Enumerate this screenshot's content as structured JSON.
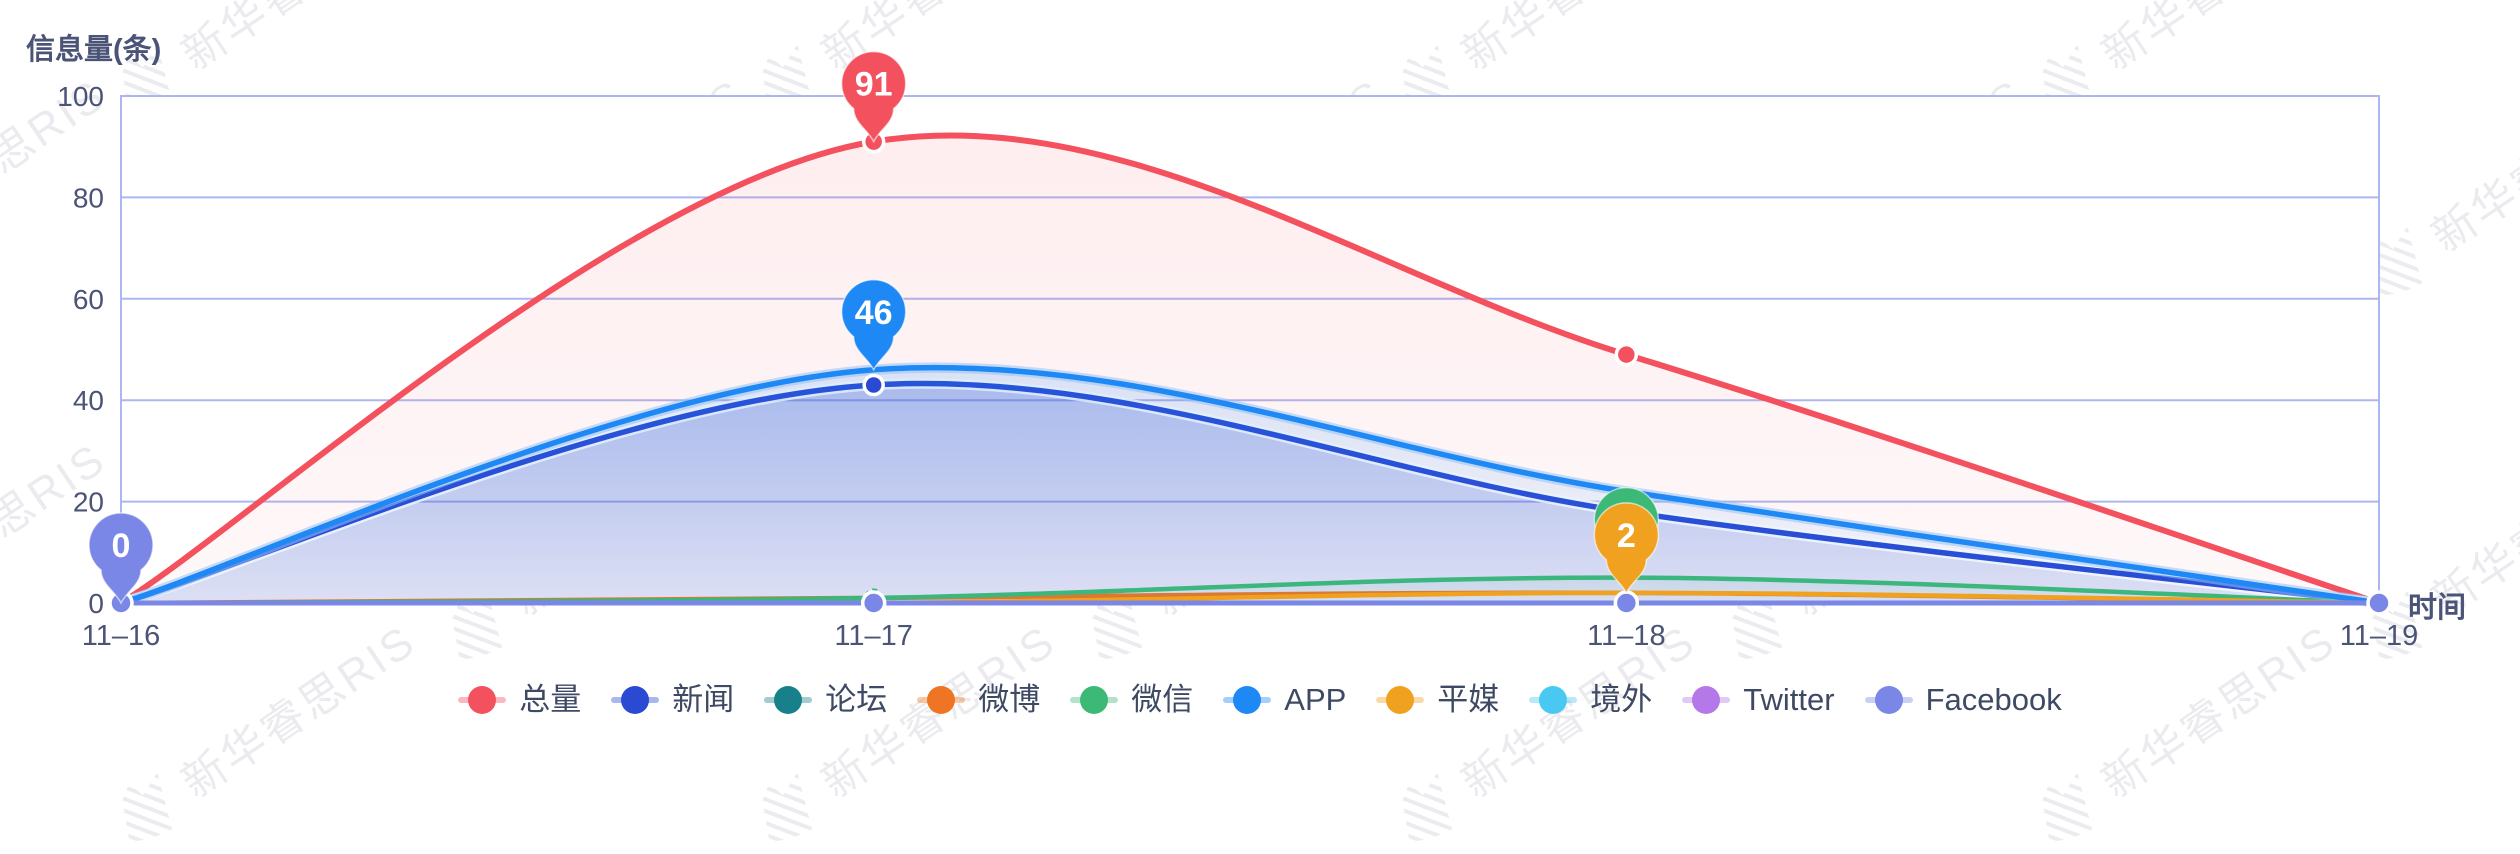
{
  "watermark": {
    "text": "新华睿思RIS"
  },
  "y_axis": {
    "title": "信息量(条)",
    "ticks": [
      0,
      20,
      40,
      60,
      80,
      100
    ]
  },
  "x_axis": {
    "title": "时间",
    "ticks": [
      "11–16",
      "11–17",
      "11–18",
      "11–19"
    ]
  },
  "colors": {
    "grid": "#aeb6f0",
    "plot_border": "#aeb6f0",
    "axis_text": "#4b5477",
    "legend_text": "#3e4963",
    "pin_text": "#ffffff"
  },
  "chart_data": {
    "type": "line",
    "title": "",
    "ylabel": "信息量(条)",
    "xlabel": "时间",
    "categories": [
      "11–16",
      "11–17",
      "11–18",
      "11–19"
    ],
    "ylim": [
      0,
      100
    ],
    "yticks": [
      0,
      20,
      40,
      60,
      80,
      100
    ],
    "grid": true,
    "smooth": true,
    "legend_position": "bottom",
    "series": [
      {
        "id": "total",
        "name": "总量",
        "color": "#f4515f",
        "values": [
          0,
          91,
          49,
          0
        ],
        "width": 6,
        "fill": [
          0.1,
          0.04
        ]
      },
      {
        "id": "news",
        "name": "新闻",
        "color": "#2a4ad4",
        "values": [
          0,
          43,
          18,
          0
        ],
        "width": 5.5,
        "fill": [
          0.28,
          0.12
        ],
        "casing": "rgba(255,255,255,0.85)"
      },
      {
        "id": "forum",
        "name": "论坛",
        "color": "#17808a",
        "values": [
          0,
          0,
          0,
          0
        ],
        "width": 4
      },
      {
        "id": "weibo",
        "name": "微博",
        "color": "#ed7524",
        "values": [
          0,
          1,
          2,
          0
        ],
        "width": 4.5
      },
      {
        "id": "wechat",
        "name": "微信",
        "color": "#3db977",
        "values": [
          0,
          1,
          5,
          0
        ],
        "width": 4.5,
        "fill": [
          0.1,
          0.03
        ]
      },
      {
        "id": "app",
        "name": "APP",
        "color": "#1e88f5",
        "values": [
          0,
          46,
          22,
          0
        ],
        "width": 5.5,
        "fill": [
          0.16,
          0.04
        ],
        "casing": "rgba(150,195,250,0.55)"
      },
      {
        "id": "print-media",
        "name": "平媒",
        "color": "#f0a11f",
        "values": [
          0,
          0,
          2,
          0
        ],
        "width": 4.5
      },
      {
        "id": "overseas",
        "name": "境外",
        "color": "#49c9f2",
        "values": [
          0,
          0,
          0,
          0
        ],
        "width": 4
      },
      {
        "id": "twitter",
        "name": "Twitter",
        "color": "#b478e8",
        "values": [
          0,
          0,
          0,
          0
        ],
        "width": 4
      },
      {
        "id": "facebook",
        "name": "Facebook",
        "color": "#7b87e6",
        "values": [
          0,
          0,
          0,
          0
        ],
        "width": 5
      }
    ],
    "pins": [
      {
        "series": "facebook",
        "point": 0,
        "label": "0"
      },
      {
        "series": "wechat",
        "point": 2,
        "label": ""
      },
      {
        "series": "print-media",
        "point": 2,
        "label": "2"
      },
      {
        "series": "total",
        "point": 1,
        "label": "91"
      },
      {
        "series": "app",
        "point": 1,
        "label": "46"
      }
    ],
    "point_markers": [
      {
        "series": "total",
        "point": 1,
        "r": 10
      },
      {
        "series": "total",
        "point": 2,
        "r": 10
      },
      {
        "series": "news",
        "point": 1,
        "r": 9.5
      },
      {
        "series": "wechat",
        "point": 1,
        "r": 8,
        "dashed": true
      },
      {
        "series": "facebook",
        "point": 0,
        "r": 11
      },
      {
        "series": "facebook",
        "point": 1,
        "r": 11
      },
      {
        "series": "facebook",
        "point": 2,
        "r": 11
      },
      {
        "series": "facebook",
        "point": 3,
        "r": 11
      }
    ]
  }
}
